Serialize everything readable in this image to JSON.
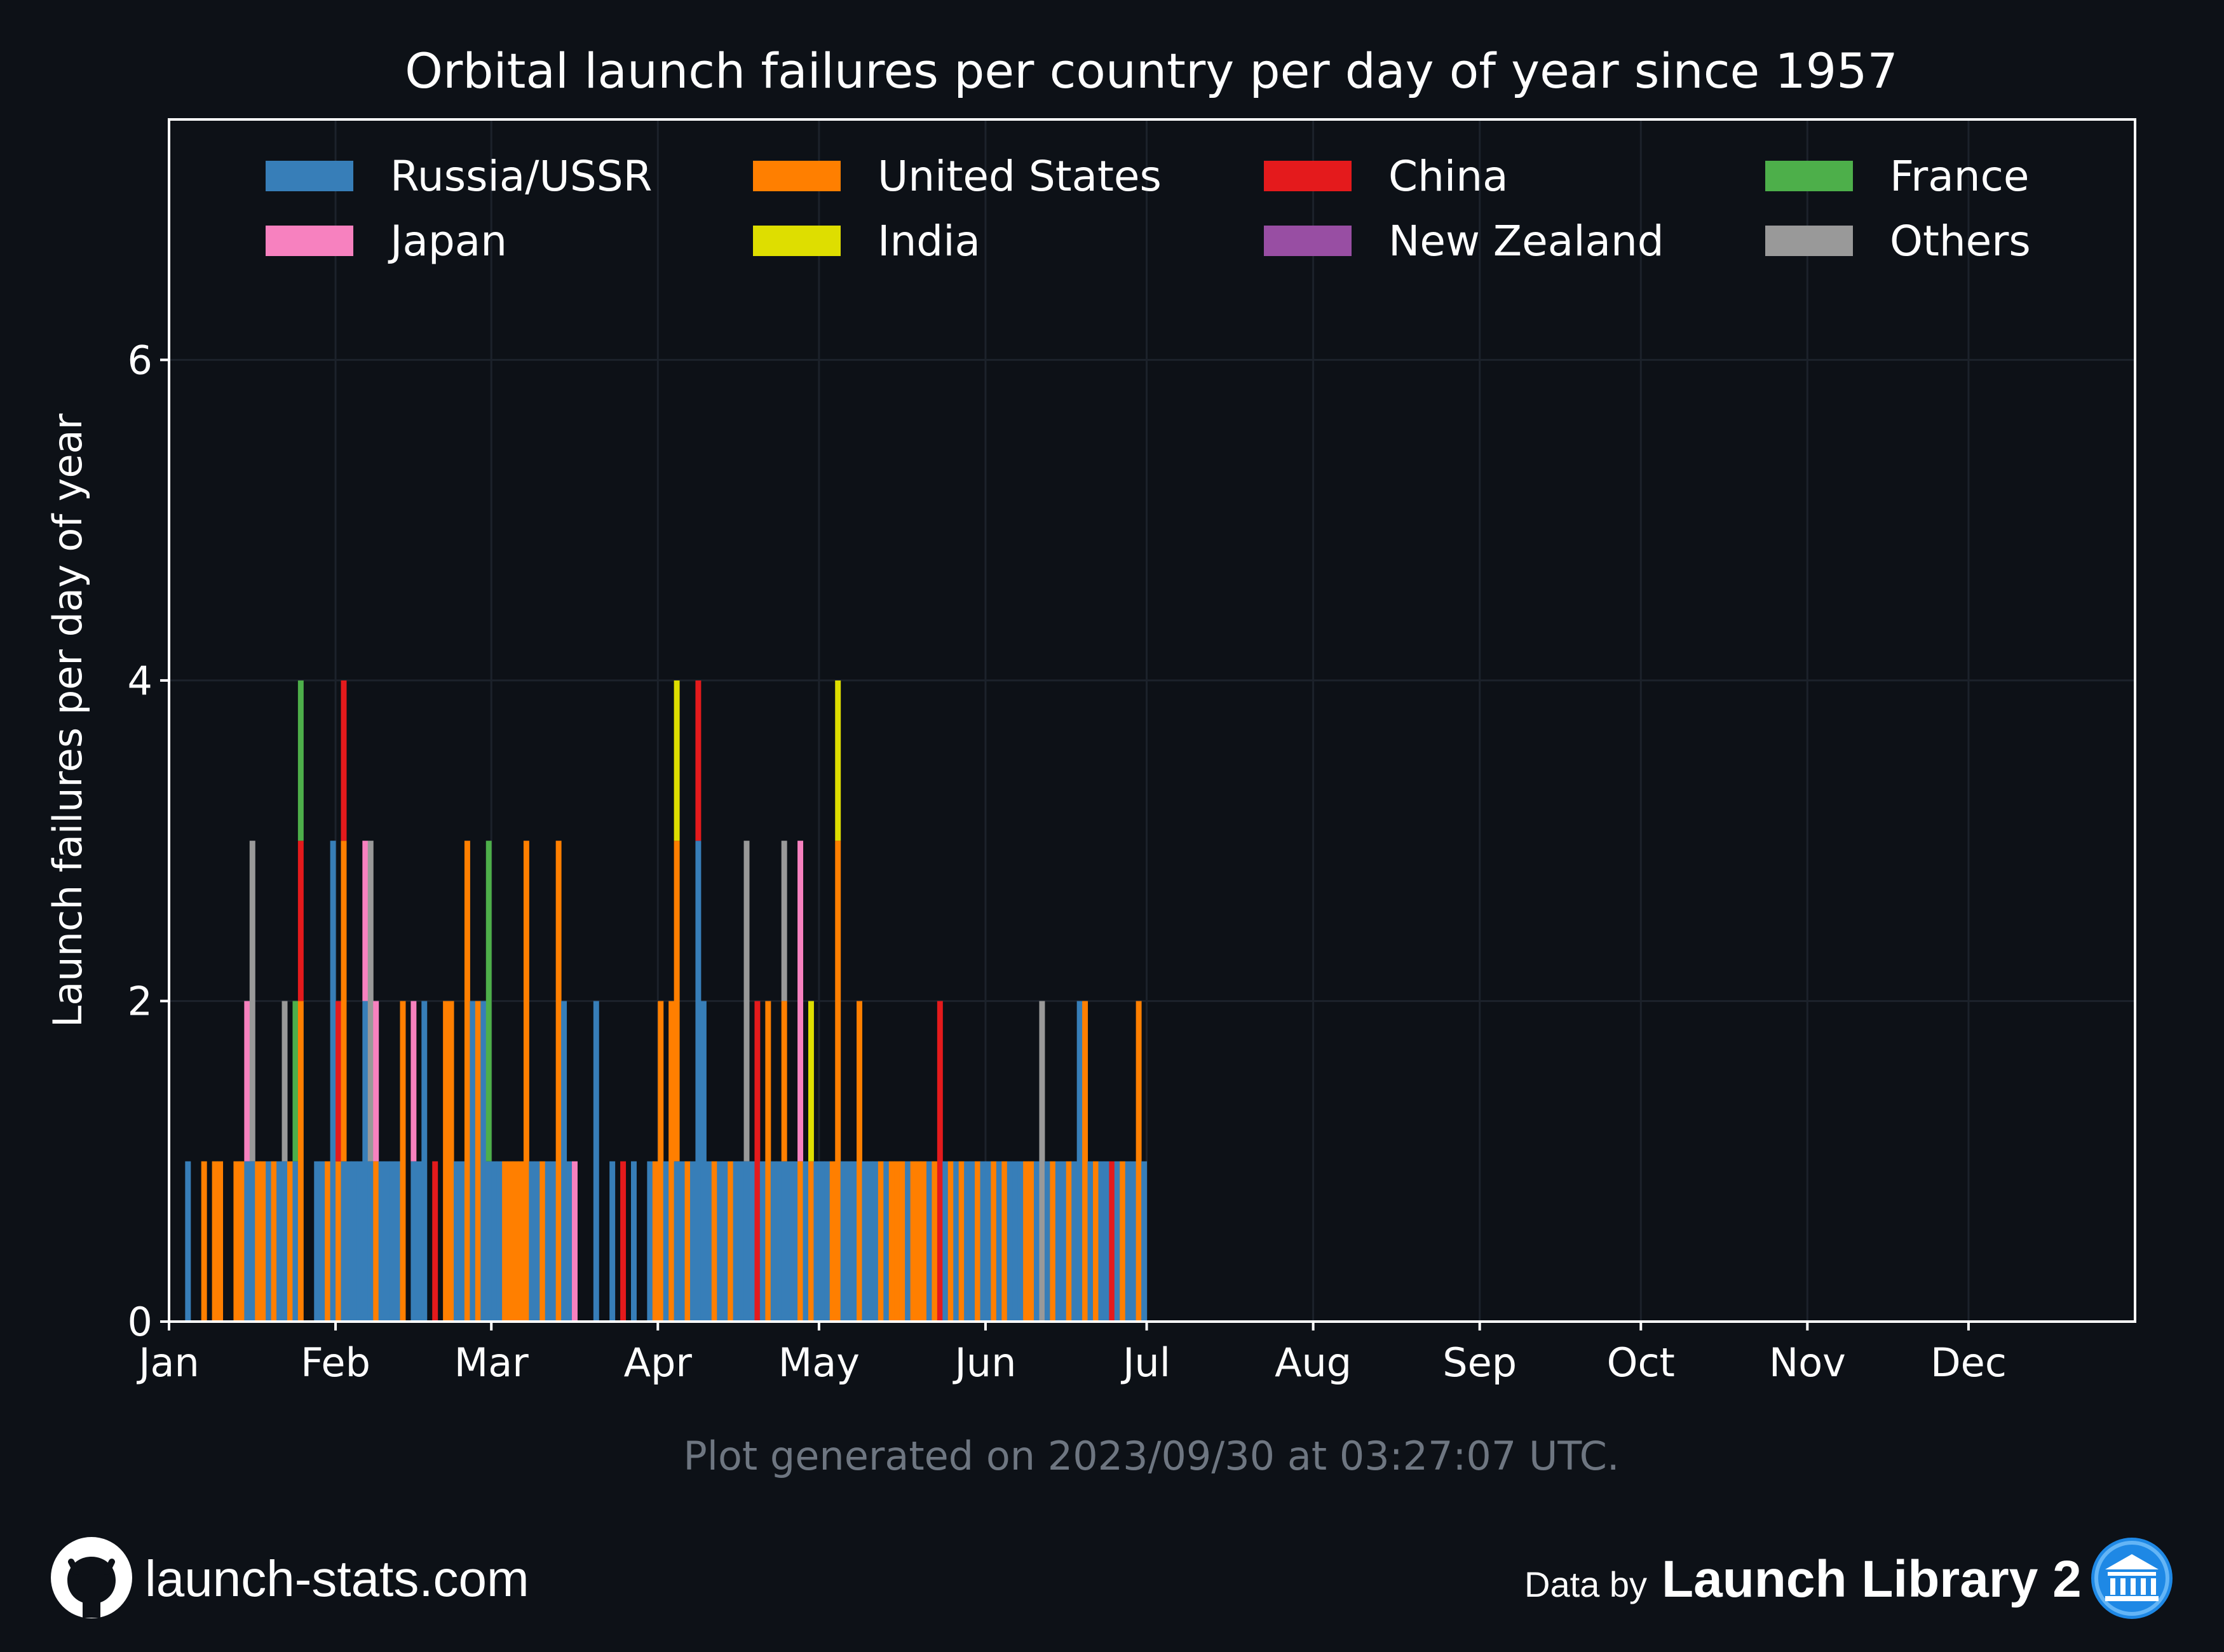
{
  "footer": {
    "site": "launch-stats.com",
    "data_by": "Data by",
    "provider": "Launch Library 2",
    "github_icon": "github-icon",
    "provider_icon": "launch-library-icon"
  },
  "generated_note": "Plot generated on 2023/09/30 at 03:27:07 UTC.",
  "colors": {
    "background": "#0d1117",
    "grid": "#1c222b",
    "Russia/USSR": "#377eb8",
    "United States": "#ff7f00",
    "China": "#e41a1c",
    "France": "#4daf4a",
    "Japan": "#f781bf",
    "India": "#dede00",
    "New Zealand": "#984ea3",
    "Others": "#999999"
  },
  "chart_data": {
    "type": "bar",
    "stacked": true,
    "title": "Orbital launch failures per country per day of year since 1957",
    "xlabel": "",
    "ylabel": "Launch failures per day of year",
    "xlim": [
      0,
      366
    ],
    "ylim": [
      0,
      7.5
    ],
    "yticks": [
      0,
      2,
      4,
      6
    ],
    "xticks": [
      {
        "label": "Jan",
        "day": 0
      },
      {
        "label": "Feb",
        "day": 31
      },
      {
        "label": "Mar",
        "day": 60
      },
      {
        "label": "Apr",
        "day": 91
      },
      {
        "label": "May",
        "day": 121
      },
      {
        "label": "Jun",
        "day": 152
      },
      {
        "label": "Jul",
        "day": 182
      },
      {
        "label": "Aug",
        "day": 213
      },
      {
        "label": "Sep",
        "day": 244
      },
      {
        "label": "Oct",
        "day": 274
      },
      {
        "label": "Nov",
        "day": 305
      },
      {
        "label": "Dec",
        "day": 335
      }
    ],
    "grid": true,
    "legend_position": "top",
    "legend": [
      "Russia/USSR",
      "United States",
      "China",
      "France",
      "Japan",
      "India",
      "New Zealand",
      "Others"
    ],
    "series_order": [
      "Russia/USSR",
      "United States",
      "China",
      "France",
      "Japan",
      "India",
      "New Zealand",
      "Others"
    ],
    "days": [
      {
        "day": 3,
        "Russia/USSR": 1
      },
      {
        "day": 6,
        "United States": 1
      },
      {
        "day": 8,
        "United States": 1
      },
      {
        "day": 9,
        "United States": 1
      },
      {
        "day": 12,
        "United States": 1
      },
      {
        "day": 13,
        "United States": 1
      },
      {
        "day": 14,
        "Russia/USSR": 1,
        "Japan": 1
      },
      {
        "day": 15,
        "Russia/USSR": 1,
        "Others": 2
      },
      {
        "day": 16,
        "United States": 1
      },
      {
        "day": 17,
        "United States": 1
      },
      {
        "day": 18,
        "Russia/USSR": 1
      },
      {
        "day": 19,
        "United States": 1
      },
      {
        "day": 20,
        "Russia/USSR": 1
      },
      {
        "day": 21,
        "Russia/USSR": 1,
        "Others": 1
      },
      {
        "day": 22,
        "United States": 1
      },
      {
        "day": 23,
        "Russia/USSR": 1,
        "France": 1
      },
      {
        "day": 24,
        "United States": 2,
        "China": 1,
        "France": 1
      },
      {
        "day": 27,
        "Russia/USSR": 1
      },
      {
        "day": 28,
        "Russia/USSR": 1
      },
      {
        "day": 29,
        "United States": 1
      },
      {
        "day": 30,
        "Russia/USSR": 3
      },
      {
        "day": 31,
        "United States": 1,
        "China": 1
      },
      {
        "day": 32,
        "Russia/USSR": 1,
        "United States": 2,
        "China": 1
      },
      {
        "day": 33,
        "Russia/USSR": 1
      },
      {
        "day": 34,
        "Russia/USSR": 1
      },
      {
        "day": 35,
        "Russia/USSR": 1
      },
      {
        "day": 36,
        "Russia/USSR": 2,
        "Japan": 1
      },
      {
        "day": 37,
        "Russia/USSR": 1,
        "Others": 2
      },
      {
        "day": 38,
        "United States": 1,
        "Japan": 1
      },
      {
        "day": 39,
        "Russia/USSR": 1
      },
      {
        "day": 40,
        "Russia/USSR": 1
      },
      {
        "day": 41,
        "Russia/USSR": 1
      },
      {
        "day": 42,
        "Russia/USSR": 1
      },
      {
        "day": 43,
        "United States": 2
      },
      {
        "day": 45,
        "Russia/USSR": 1,
        "Japan": 1
      },
      {
        "day": 46,
        "Russia/USSR": 1
      },
      {
        "day": 47,
        "Russia/USSR": 2
      },
      {
        "day": 49,
        "China": 1
      },
      {
        "day": 51,
        "United States": 2
      },
      {
        "day": 52,
        "United States": 2
      },
      {
        "day": 53,
        "Russia/USSR": 1
      },
      {
        "day": 54,
        "Russia/USSR": 1
      },
      {
        "day": 55,
        "United States": 3
      },
      {
        "day": 56,
        "Russia/USSR": 2
      },
      {
        "day": 57,
        "United States": 2
      },
      {
        "day": 58,
        "Russia/USSR": 2
      },
      {
        "day": 59,
        "Russia/USSR": 1,
        "France": 2
      },
      {
        "day": 60,
        "Russia/USSR": 1
      },
      {
        "day": 61,
        "Russia/USSR": 1
      },
      {
        "day": 62,
        "United States": 1
      },
      {
        "day": 63,
        "United States": 1
      },
      {
        "day": 64,
        "United States": 1
      },
      {
        "day": 65,
        "United States": 1
      },
      {
        "day": 66,
        "United States": 3
      },
      {
        "day": 67,
        "Russia/USSR": 1
      },
      {
        "day": 68,
        "Russia/USSR": 1
      },
      {
        "day": 69,
        "United States": 1
      },
      {
        "day": 70,
        "Russia/USSR": 1
      },
      {
        "day": 71,
        "Russia/USSR": 1
      },
      {
        "day": 72,
        "United States": 3
      },
      {
        "day": 73,
        "Russia/USSR": 2
      },
      {
        "day": 74,
        "Russia/USSR": 1
      },
      {
        "day": 75,
        "Japan": 1
      },
      {
        "day": 79,
        "Russia/USSR": 2
      },
      {
        "day": 82,
        "Russia/USSR": 1
      },
      {
        "day": 84,
        "China": 1
      },
      {
        "day": 86,
        "Russia/USSR": 1
      },
      {
        "day": 89,
        "Russia/USSR": 1
      },
      {
        "day": 90,
        "United States": 1
      },
      {
        "day": 91,
        "United States": 2
      },
      {
        "day": 92,
        "Russia/USSR": 1
      },
      {
        "day": 93,
        "United States": 2
      },
      {
        "day": 94,
        "Russia/USSR": 1,
        "United States": 2,
        "India": 1
      },
      {
        "day": 95,
        "Russia/USSR": 1
      },
      {
        "day": 96,
        "United States": 1
      },
      {
        "day": 97,
        "Russia/USSR": 1
      },
      {
        "day": 98,
        "Russia/USSR": 3,
        "China": 1
      },
      {
        "day": 99,
        "Russia/USSR": 2
      },
      {
        "day": 100,
        "Russia/USSR": 1
      },
      {
        "day": 101,
        "United States": 1
      },
      {
        "day": 102,
        "Russia/USSR": 1
      },
      {
        "day": 103,
        "Russia/USSR": 1
      },
      {
        "day": 104,
        "United States": 1
      },
      {
        "day": 105,
        "Russia/USSR": 1
      },
      {
        "day": 106,
        "Russia/USSR": 1
      },
      {
        "day": 107,
        "Russia/USSR": 1,
        "Others": 2
      },
      {
        "day": 108,
        "Russia/USSR": 1
      },
      {
        "day": 109,
        "China": 2
      },
      {
        "day": 110,
        "Russia/USSR": 1
      },
      {
        "day": 111,
        "United States": 2
      },
      {
        "day": 112,
        "Russia/USSR": 1
      },
      {
        "day": 113,
        "Russia/USSR": 1
      },
      {
        "day": 114,
        "Russia/USSR": 1,
        "United States": 1,
        "Others": 1
      },
      {
        "day": 115,
        "Russia/USSR": 1
      },
      {
        "day": 116,
        "Russia/USSR": 1
      },
      {
        "day": 117,
        "United States": 1,
        "Japan": 2
      },
      {
        "day": 118,
        "Russia/USSR": 1
      },
      {
        "day": 119,
        "United States": 1,
        "India": 1
      },
      {
        "day": 120,
        "Russia/USSR": 1
      },
      {
        "day": 121,
        "Russia/USSR": 1
      },
      {
        "day": 122,
        "Russia/USSR": 1
      },
      {
        "day": 123,
        "United States": 1
      },
      {
        "day": 124,
        "United States": 3,
        "India": 1
      },
      {
        "day": 125,
        "Russia/USSR": 1
      },
      {
        "day": 126,
        "Russia/USSR": 1
      },
      {
        "day": 127,
        "Russia/USSR": 1
      },
      {
        "day": 128,
        "United States": 2
      },
      {
        "day": 129,
        "Russia/USSR": 1
      },
      {
        "day": 130,
        "Russia/USSR": 1
      },
      {
        "day": 131,
        "Russia/USSR": 1
      },
      {
        "day": 132,
        "United States": 1
      },
      {
        "day": 133,
        "Russia/USSR": 1
      },
      {
        "day": 134,
        "United States": 1
      },
      {
        "day": 135,
        "United States": 1
      },
      {
        "day": 136,
        "United States": 1
      },
      {
        "day": 137,
        "Russia/USSR": 1
      },
      {
        "day": 138,
        "United States": 1
      },
      {
        "day": 139,
        "United States": 1
      },
      {
        "day": 140,
        "United States": 1
      },
      {
        "day": 141,
        "Russia/USSR": 1
      },
      {
        "day": 142,
        "United States": 1
      },
      {
        "day": 143,
        "China": 2
      },
      {
        "day": 144,
        "Russia/USSR": 1
      },
      {
        "day": 145,
        "United States": 1
      },
      {
        "day": 146,
        "Russia/USSR": 1
      },
      {
        "day": 147,
        "United States": 1
      },
      {
        "day": 148,
        "Russia/USSR": 1
      },
      {
        "day": 149,
        "Russia/USSR": 1
      },
      {
        "day": 150,
        "United States": 1
      },
      {
        "day": 151,
        "Russia/USSR": 1
      },
      {
        "day": 152,
        "Russia/USSR": 1
      },
      {
        "day": 153,
        "United States": 1
      },
      {
        "day": 154,
        "Russia/USSR": 1
      },
      {
        "day": 155,
        "United States": 1
      },
      {
        "day": 156,
        "Russia/USSR": 1
      },
      {
        "day": 157,
        "Russia/USSR": 1
      },
      {
        "day": 158,
        "Russia/USSR": 1
      },
      {
        "day": 159,
        "United States": 1
      },
      {
        "day": 160,
        "United States": 1
      },
      {
        "day": 161,
        "Russia/USSR": 1
      },
      {
        "day": 162,
        "Others": 2
      },
      {
        "day": 163,
        "Russia/USSR": 1
      },
      {
        "day": 164,
        "United States": 1
      },
      {
        "day": 165,
        "Russia/USSR": 1
      },
      {
        "day": 166,
        "Russia/USSR": 1
      },
      {
        "day": 167,
        "United States": 1
      },
      {
        "day": 168,
        "Russia/USSR": 1
      },
      {
        "day": 169,
        "Russia/USSR": 2
      },
      {
        "day": 170,
        "United States": 2
      },
      {
        "day": 171,
        "Russia/USSR": 1
      },
      {
        "day": 172,
        "United States": 1
      },
      {
        "day": 173,
        "Russia/USSR": 1
      },
      {
        "day": 174,
        "Russia/USSR": 1
      },
      {
        "day": 175,
        "China": 1
      },
      {
        "day": 176,
        "Russia/USSR": 1
      },
      {
        "day": 177,
        "United States": 1
      },
      {
        "day": 178,
        "Russia/USSR": 1
      },
      {
        "day": 179,
        "Russia/USSR": 1
      },
      {
        "day": 180,
        "United States": 2
      },
      {
        "day": 181,
        "Russia/USSR": 1
      }
    ]
  }
}
